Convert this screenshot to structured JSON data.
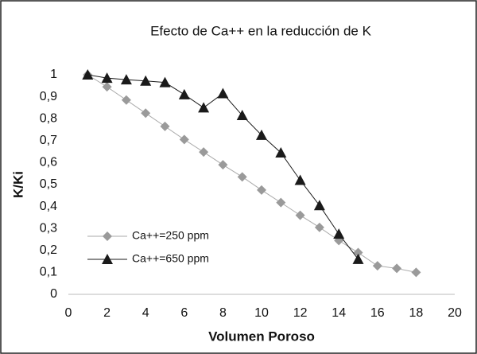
{
  "chart_data": {
    "type": "line",
    "title": "Efecto de Ca++ en la reducción de K",
    "xlabel": "Volumen Poroso",
    "ylabel": "K/Ki",
    "xlim": [
      0,
      20
    ],
    "xticks": [
      0,
      2,
      4,
      6,
      8,
      10,
      12,
      14,
      16,
      18,
      20
    ],
    "ylim": [
      0,
      1
    ],
    "yticks": [
      0,
      {
        "value": 0.1,
        "label": "0,1"
      },
      {
        "value": 0.2,
        "label": "0,2"
      },
      {
        "value": 0.3,
        "label": "0,3"
      },
      {
        "value": 0.4,
        "label": "0,4"
      },
      {
        "value": 0.5,
        "label": "0,5"
      },
      {
        "value": 0.6,
        "label": "0,6"
      },
      {
        "value": 0.7,
        "label": "0,7"
      },
      {
        "value": 0.8,
        "label": "0,8"
      },
      {
        "value": 0.9,
        "label": "0,9"
      },
      1
    ],
    "grid": false,
    "legend": "left",
    "series": [
      {
        "name": "Ca++=250 ppm",
        "color": "#9a9a9a",
        "marker": "diamond",
        "x": [
          1,
          2,
          3,
          4,
          5,
          6,
          7,
          8,
          9,
          10,
          11,
          12,
          13,
          14,
          15,
          16,
          17,
          18
        ],
        "values": [
          1.0,
          0.945,
          0.885,
          0.825,
          0.765,
          0.705,
          0.648,
          0.59,
          0.535,
          0.475,
          0.418,
          0.36,
          0.305,
          0.245,
          0.19,
          0.13,
          0.118,
          0.1
        ]
      },
      {
        "name": "Ca++=650 ppm",
        "color": "#1a1a1a",
        "marker": "triangle",
        "x": [
          1,
          2,
          3,
          4,
          5,
          6,
          7,
          8,
          9,
          10,
          11,
          12,
          13,
          14,
          15
        ],
        "values": [
          1.0,
          0.985,
          0.978,
          0.972,
          0.965,
          0.91,
          0.85,
          0.915,
          0.815,
          0.725,
          0.645,
          0.52,
          0.405,
          0.275,
          0.16
        ]
      }
    ]
  }
}
